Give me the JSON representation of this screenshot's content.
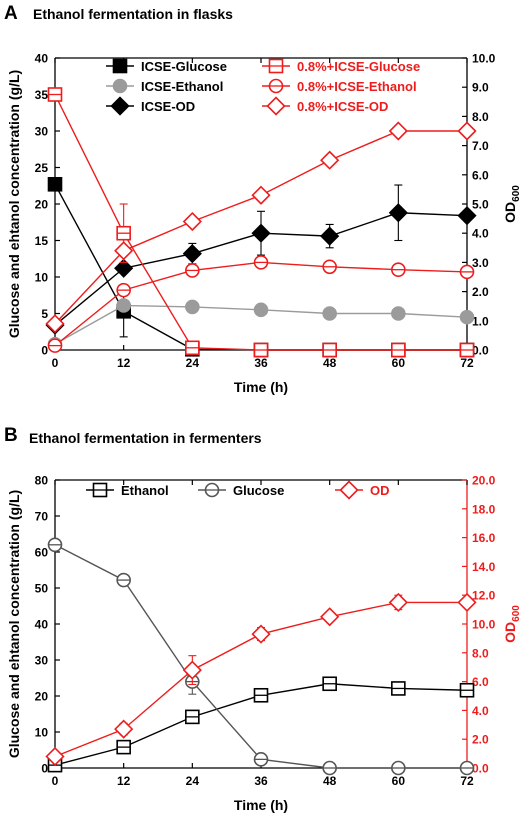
{
  "colors": {
    "black": "#000000",
    "grey": "#9b9b9b",
    "red": "#ee1c1c",
    "dark": "#555555"
  },
  "chart_data": [
    {
      "type": "line",
      "panel_letter": "A",
      "title": "Ethanol fermentation in flasks",
      "xlabel": "Time (h)",
      "ylabel": "Glucose and ehtanol concentration (g/L)",
      "y2label_main": "OD",
      "y2label_sub": "600",
      "x": [
        0,
        12,
        24,
        36,
        48,
        60,
        72
      ],
      "xlim": [
        0,
        72
      ],
      "ylim": [
        0,
        40
      ],
      "y2lim": [
        0,
        10
      ],
      "xticks": [
        "0",
        "12",
        "24",
        "36",
        "48",
        "60",
        "72"
      ],
      "yticks": [
        "0",
        "5",
        "10",
        "15",
        "20",
        "25",
        "30",
        "35",
        "40"
      ],
      "y2ticks": [
        "0.0",
        "1.0",
        "2.0",
        "3.0",
        "4.0",
        "5.0",
        "6.0",
        "7.0",
        "8.0",
        "9.0",
        "10.0"
      ],
      "grid": false,
      "legend_position": "top",
      "series": [
        {
          "name": "ICSE-Glucose",
          "axis": "left",
          "color": "black",
          "marker": "square-filled",
          "values": [
            22.7,
            5.3,
            0.1,
            0,
            0,
            0,
            0
          ],
          "errors": [
            0.3,
            3.5,
            0,
            0,
            0,
            0,
            0
          ]
        },
        {
          "name": "ICSE-Ethanol",
          "axis": "left",
          "color": "grey",
          "marker": "circle-filled",
          "values": [
            0.8,
            6.1,
            5.9,
            5.5,
            5.0,
            5.0,
            4.5
          ],
          "errors": [
            0,
            0.3,
            0.3,
            0.3,
            0.3,
            0.3,
            0.3
          ]
        },
        {
          "name": "ICSE-OD",
          "axis": "right",
          "color": "black",
          "marker": "diamond-filled",
          "values": [
            0.85,
            2.8,
            3.3,
            4.0,
            3.9,
            4.7,
            4.6
          ],
          "errors": [
            0,
            0.15,
            0.35,
            0.75,
            0.4,
            0.95,
            0.1
          ]
        },
        {
          "name": "0.8%+ICSE-Glucose",
          "axis": "left",
          "color": "red",
          "marker": "square-open",
          "values": [
            35,
            16,
            0.3,
            0,
            0,
            0,
            0
          ],
          "errors": [
            0,
            4,
            0,
            0,
            0,
            0,
            0
          ]
        },
        {
          "name": "0.8%+ICSE-Ethanol",
          "axis": "left",
          "color": "red",
          "marker": "circle-open",
          "values": [
            0.6,
            8.2,
            10.9,
            12.0,
            11.4,
            11.0,
            10.7
          ],
          "errors": [
            0,
            0.3,
            0.3,
            0.3,
            0.3,
            0.3,
            0.3
          ]
        },
        {
          "name": "0.8%+ICSE-OD",
          "axis": "right",
          "color": "red",
          "marker": "diamond-open",
          "values": [
            0.9,
            3.4,
            4.4,
            5.3,
            6.5,
            7.5,
            7.5
          ],
          "errors": [
            0,
            0,
            0,
            0,
            0,
            0,
            0
          ]
        }
      ]
    },
    {
      "type": "line",
      "panel_letter": "B",
      "title": "Ethanol fermentation in fermenters",
      "xlabel": "Time (h)",
      "ylabel": "Glucose and ehtanol concentration (g/L)",
      "y2label_main": "OD",
      "y2label_sub": "600",
      "x": [
        0,
        12,
        24,
        36,
        48,
        60,
        72
      ],
      "xlim": [
        0,
        72
      ],
      "ylim": [
        0,
        80
      ],
      "y2lim": [
        0,
        20
      ],
      "xticks": [
        "0",
        "12",
        "24",
        "36",
        "48",
        "60",
        "72"
      ],
      "yticks": [
        "0",
        "10",
        "20",
        "30",
        "40",
        "50",
        "60",
        "70",
        "80"
      ],
      "y2ticks": [
        "0.0",
        "2.0",
        "4.0",
        "6.0",
        "8.0",
        "10.0",
        "12.0",
        "14.0",
        "16.0",
        "18.0",
        "20.0"
      ],
      "grid": false,
      "legend_position": "top",
      "series": [
        {
          "name": "Ethanol",
          "axis": "left",
          "color": "black",
          "marker": "square-open",
          "values": [
            0.8,
            5.8,
            14.2,
            20.2,
            23.4,
            22.1,
            21.6
          ],
          "errors": [
            0.5,
            0.5,
            0.5,
            0.5,
            0.8,
            0.5,
            0.5
          ]
        },
        {
          "name": "Glucose",
          "axis": "left",
          "color": "dark",
          "marker": "circle-open",
          "values": [
            62,
            52.2,
            24,
            2.4,
            0,
            0,
            0
          ],
          "errors": [
            0.8,
            0.6,
            3.5,
            0.3,
            0,
            0,
            0
          ]
        },
        {
          "name": "OD",
          "axis": "right",
          "color": "red",
          "marker": "diamond-open",
          "values": [
            0.8,
            2.7,
            6.8,
            9.3,
            10.5,
            11.5,
            11.5
          ],
          "errors": [
            0.15,
            0.4,
            1.0,
            0.45,
            0.3,
            0.5,
            0.35
          ]
        }
      ]
    }
  ]
}
